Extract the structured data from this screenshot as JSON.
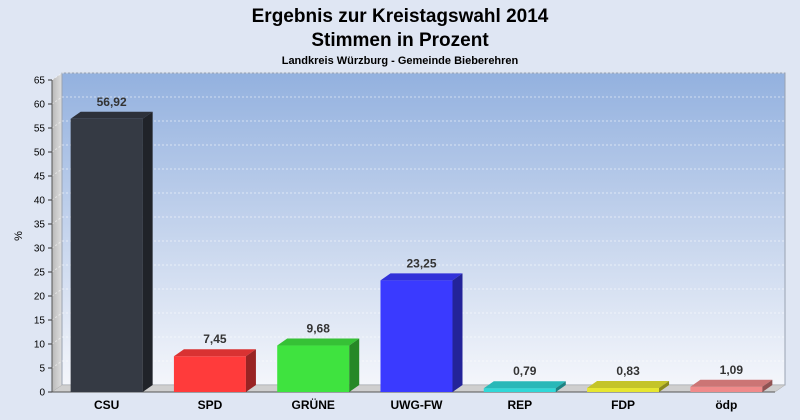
{
  "chart_data": {
    "type": "bar",
    "title": "Ergebnis zur Kreistagswahl 2014",
    "title_line2": "Stimmen in Prozent",
    "subtitle": "Landkreis Würzburg - Gemeinde Bieberehren",
    "ylabel": "%",
    "xlabel": "",
    "ylim": [
      0,
      65
    ],
    "yticks": [
      0,
      5,
      10,
      15,
      20,
      25,
      30,
      35,
      40,
      45,
      50,
      55,
      60,
      65
    ],
    "grid": true,
    "categories": [
      "CSU",
      "SPD",
      "GRÜNE",
      "UWG-FW",
      "REP",
      "FDP",
      "ödp"
    ],
    "values": [
      56.92,
      7.45,
      9.68,
      23.25,
      0.79,
      0.83,
      1.09
    ],
    "value_labels": [
      "56,92",
      "7,45",
      "9,68",
      "23,25",
      "0,79",
      "0,83",
      "1,09"
    ],
    "colors": [
      "#353a44",
      "#ff3b3b",
      "#3fe33f",
      "#3a3aff",
      "#30d8d8",
      "#e6e630",
      "#f08a8a"
    ]
  }
}
